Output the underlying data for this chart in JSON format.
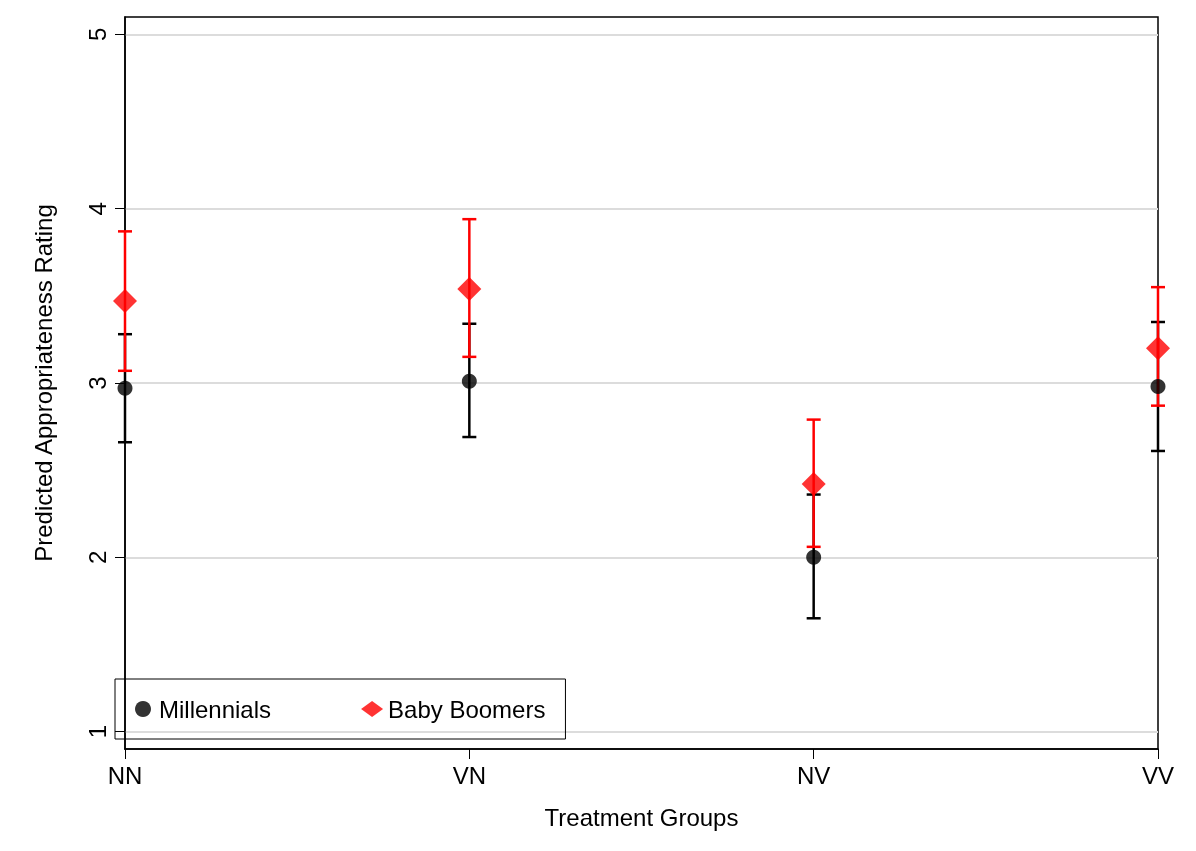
{
  "chart_data": {
    "type": "scatter",
    "xlabel": "Treatment Groups",
    "ylabel": "Predicted Appropriateness Rating",
    "categories": [
      "NN",
      "VN",
      "NV",
      "VV"
    ],
    "series": [
      {
        "name": "Millennials",
        "color": "#000000",
        "marker": "circle",
        "values": [
          2.97,
          3.01,
          2.0,
          2.98
        ],
        "errors": [
          [
            2.66,
            3.28
          ],
          [
            2.69,
            3.34
          ],
          [
            1.65,
            2.36
          ],
          [
            2.61,
            3.35
          ]
        ]
      },
      {
        "name": "Baby Boomers",
        "color": "#ff0000",
        "marker": "diamond",
        "values": [
          3.47,
          3.54,
          2.42,
          3.2
        ],
        "errors": [
          [
            3.07,
            3.87
          ],
          [
            3.15,
            3.94
          ],
          [
            2.06,
            2.79
          ],
          [
            2.87,
            3.55
          ]
        ]
      }
    ],
    "ylim": [
      0.9,
      5.1
    ],
    "yticks": [
      1,
      2,
      3,
      4,
      5
    ],
    "grid": "y",
    "legend": "bottom left"
  }
}
